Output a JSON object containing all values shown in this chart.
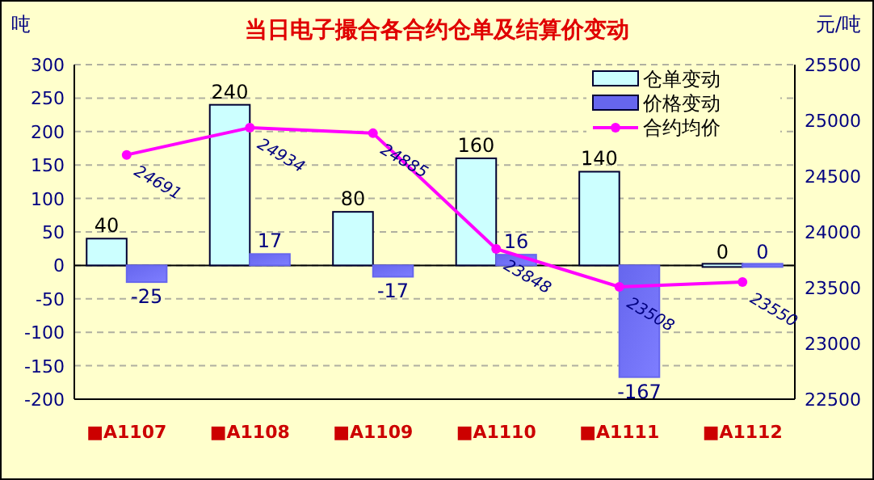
{
  "chart_data": {
    "type": "bar",
    "title": "当日电子撮合各合约仓单及结算价变动",
    "ylabel": "吨",
    "y2label": "元/吨",
    "categories": [
      "■A1107",
      "■A1108",
      "■A1109",
      "■A1110",
      "■A1111",
      "■A1112"
    ],
    "series": [
      {
        "name": "仓单变动",
        "color": "#ccffff",
        "values": [
          40,
          240,
          80,
          160,
          140,
          0
        ]
      },
      {
        "name": "价格变动",
        "color": "#6666ee",
        "values": [
          -25,
          17,
          -17,
          16,
          -167,
          0
        ]
      },
      {
        "name": "合约均价",
        "type": "line",
        "axis": "y2",
        "color": "#ff00ff",
        "values": [
          24691,
          24934,
          24885,
          23848,
          23508,
          23550
        ]
      }
    ],
    "ylim": [
      -200,
      300
    ],
    "yticks": [
      -200,
      -150,
      -100,
      -50,
      0,
      50,
      100,
      150,
      200,
      250,
      300
    ],
    "y2lim": [
      22500,
      25500
    ],
    "y2ticks": [
      22500,
      23000,
      23500,
      24000,
      24500,
      25000,
      25500
    ],
    "grid": "y",
    "legend": "top right",
    "marker": "circle",
    "data_labels": true
  }
}
